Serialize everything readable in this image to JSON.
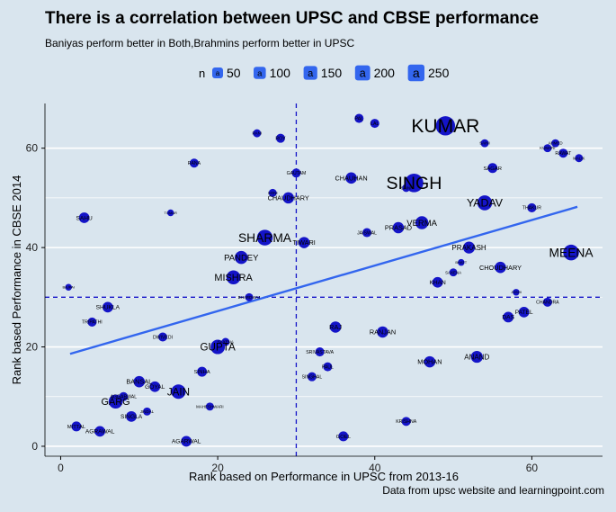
{
  "title": "There is a correlation between UPSC and CBSE performance",
  "subtitle": "Baniyas perform better in Both,Brahmins perform better in UPSC",
  "caption": "Data from upsc website and learningpoint.com",
  "legend": {
    "title": "n",
    "glyph": "a",
    "entries": [
      "50",
      "100",
      "150",
      "200",
      "250"
    ]
  },
  "colors": {
    "background": "#d9e5ee",
    "point": "#1414c8",
    "trend_line": "#3366ee",
    "reference_line": "#1414c8",
    "grid": "#ffffff",
    "legend_key": "#3366ee"
  },
  "chart_data": {
    "type": "scatter",
    "title": "There is a correlation between UPSC and CBSE performance",
    "subtitle": "Baniyas perform better in Both,Brahmins perform better in UPSC",
    "xlabel": "Rank based on Performance in UPSC from 2013-16",
    "ylabel": "Rank based Performance in CBSE 2014",
    "xlim": [
      -2,
      69
    ],
    "ylim": [
      -2,
      69
    ],
    "x_ticks": [
      "0",
      "20",
      "40",
      "60"
    ],
    "y_ticks": [
      "0",
      "20",
      "40",
      "60"
    ],
    "x_tick_values": [
      0,
      20,
      40,
      60
    ],
    "y_tick_values": [
      0,
      20,
      40,
      60
    ],
    "grid": true,
    "legend_position": "top",
    "reference_lines": {
      "x": 30,
      "y": 30
    },
    "trend_line": {
      "x": [
        1.2,
        65.8
      ],
      "y": [
        18.6,
        48.2
      ]
    },
    "points": [
      {
        "label": "KUMAR",
        "x": 49,
        "y": 64.5,
        "n": 250
      },
      {
        "label": "SINGH",
        "x": 45,
        "y": 53,
        "n": 230
      },
      {
        "label": "YADAV",
        "x": 54,
        "y": 49,
        "n": 130
      },
      {
        "label": "MEENA",
        "x": 65,
        "y": 39,
        "n": 150
      },
      {
        "label": "SHARMA",
        "x": 26,
        "y": 42,
        "n": 150
      },
      {
        "label": "GUPTA",
        "x": 20,
        "y": 20,
        "n": 120
      },
      {
        "label": "JAIN",
        "x": 15,
        "y": 11,
        "n": 120
      },
      {
        "label": "GARG",
        "x": 7,
        "y": 9,
        "n": 110
      },
      {
        "label": "MISHRA",
        "x": 22,
        "y": 34,
        "n": 110
      },
      {
        "label": "PANDEY",
        "x": 23,
        "y": 38,
        "n": 90
      },
      {
        "label": "VERMA",
        "x": 46,
        "y": 45,
        "n": 90
      },
      {
        "label": "CHAUHAN",
        "x": 37,
        "y": 54,
        "n": 60
      },
      {
        "label": "CHAUDHARY",
        "x": 29,
        "y": 50,
        "n": 60
      },
      {
        "label": "CHOUDHARY",
        "x": 56,
        "y": 36,
        "n": 60
      },
      {
        "label": "PRAKASH",
        "x": 52,
        "y": 40,
        "n": 70
      },
      {
        "label": "PRASAD",
        "x": 43,
        "y": 44,
        "n": 60
      },
      {
        "label": "ANAND",
        "x": 53,
        "y": 18,
        "n": 70
      },
      {
        "label": "MOHAN",
        "x": 47,
        "y": 17,
        "n": 60
      },
      {
        "label": "RANJAN",
        "x": 41,
        "y": 23,
        "n": 60
      },
      {
        "label": "RAJ",
        "x": 35,
        "y": 24,
        "n": 60
      },
      {
        "label": "TIWARI",
        "x": 31,
        "y": 41,
        "n": 60
      },
      {
        "label": "BANSAL",
        "x": 10,
        "y": 13,
        "n": 60
      },
      {
        "label": "GOYAL",
        "x": 12,
        "y": 12,
        "n": 50
      },
      {
        "label": "SINGLA",
        "x": 9,
        "y": 6,
        "n": 50
      },
      {
        "label": "SHUKLA",
        "x": 6,
        "y": 28,
        "n": 50
      },
      {
        "label": "AGARWAL",
        "x": 16,
        "y": 1,
        "n": 50
      },
      {
        "label": "AGRAWAL",
        "x": 5,
        "y": 3,
        "n": 50
      },
      {
        "label": "MITTAL",
        "x": 2,
        "y": 4,
        "n": 40
      },
      {
        "label": "DAS",
        "x": 57,
        "y": 26,
        "n": 50
      },
      {
        "label": "PATEL",
        "x": 59,
        "y": 27,
        "n": 50
      },
      {
        "label": "SAHU",
        "x": 3,
        "y": 46,
        "n": 50
      },
      {
        "label": "KHAN",
        "x": 48,
        "y": 33,
        "n": 50
      },
      {
        "label": "GOEL",
        "x": 36,
        "y": 2,
        "n": 40
      },
      {
        "label": "SAGAR",
        "x": 55,
        "y": 56,
        "n": 40
      },
      {
        "label": "SINHA",
        "x": 18,
        "y": 15,
        "n": 40
      },
      {
        "label": "SRIVASTAVA",
        "x": 33,
        "y": 19,
        "n": 30
      },
      {
        "label": "PAUL",
        "x": 34,
        "y": 16,
        "n": 30
      },
      {
        "label": "SINGHAL",
        "x": 32,
        "y": 14,
        "n": 30
      },
      {
        "label": "KRISHNA",
        "x": 44,
        "y": 5,
        "n": 30
      },
      {
        "label": "JAISWAL",
        "x": 39,
        "y": 43,
        "n": 30
      },
      {
        "label": "DWIVEDI",
        "x": 13,
        "y": 22,
        "n": 30
      },
      {
        "label": "TRIPATHI",
        "x": 4,
        "y": 25,
        "n": 30
      },
      {
        "label": "GAUTAM",
        "x": 30,
        "y": 55,
        "n": 30
      },
      {
        "label": "RANA",
        "x": 17,
        "y": 57,
        "n": 30
      },
      {
        "label": "RANI",
        "x": 25,
        "y": 63,
        "n": 20
      },
      {
        "label": "PAL",
        "x": 38,
        "y": 66,
        "n": 30
      },
      {
        "label": "LAL",
        "x": 40,
        "y": 65,
        "n": 30
      },
      {
        "label": "ROY",
        "x": 28,
        "y": 62,
        "n": 30
      },
      {
        "label": "SAINI",
        "x": 54,
        "y": 61,
        "n": 20
      },
      {
        "label": "AHMED",
        "x": 63,
        "y": 61,
        "n": 20
      },
      {
        "label": "KUMARI",
        "x": 62,
        "y": 60,
        "n": 20
      },
      {
        "label": "RAWAT",
        "x": 64,
        "y": 59,
        "n": 30
      },
      {
        "label": "MALIK",
        "x": 66,
        "y": 58,
        "n": 20
      },
      {
        "label": "THAKUR",
        "x": 60,
        "y": 48,
        "n": 30
      },
      {
        "label": "TOMAR",
        "x": 14,
        "y": 47,
        "n": 10
      },
      {
        "label": "SONI",
        "x": 27,
        "y": 51,
        "n": 20
      },
      {
        "label": "SAINI",
        "x": 44,
        "y": 52,
        "n": 20
      },
      {
        "label": "BHATT",
        "x": 51,
        "y": 37,
        "n": 10
      },
      {
        "label": "SAXENA",
        "x": 50,
        "y": 35,
        "n": 20
      },
      {
        "label": "JOSHI",
        "x": 58,
        "y": 31,
        "n": 10
      },
      {
        "label": "CHANDRA",
        "x": 62,
        "y": 29,
        "n": 30
      },
      {
        "label": "BAJPAI",
        "x": 1,
        "y": 32,
        "n": 10
      },
      {
        "label": "BHARDWAJ",
        "x": 24,
        "y": 30,
        "n": 20
      },
      {
        "label": "SAXENA",
        "x": 21,
        "y": 21,
        "n": 20
      },
      {
        "label": "AGGARWAL",
        "x": 8,
        "y": 10,
        "n": 30
      },
      {
        "label": "JINDAL",
        "x": 11,
        "y": 7,
        "n": 20
      },
      {
        "label": "MAHESHWARI",
        "x": 19,
        "y": 8,
        "n": 20
      }
    ]
  }
}
